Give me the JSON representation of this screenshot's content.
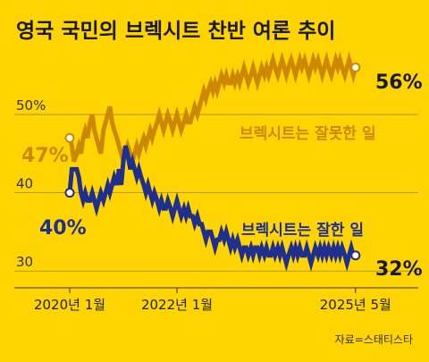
{
  "chart_data": {
    "type": "line",
    "title": "영국 국민의 브렉시트 찬반 여론 추이",
    "source": "자료=스태티스타",
    "y_ticks": [
      {
        "value": 50,
        "label": "50%"
      },
      {
        "value": 40,
        "label": "40"
      },
      {
        "value": 30,
        "label": "30"
      }
    ],
    "x_ticks": [
      {
        "value": 2020.0,
        "label": "2020년 1월"
      },
      {
        "value": 2022.0,
        "label": "2022년 1월"
      },
      {
        "value": 2025.33,
        "label": "2025년 5월"
      }
    ],
    "xlim": [
      2020.0,
      2025.5
    ],
    "ylim": [
      29,
      58
    ],
    "grid": "horizontal",
    "colors": {
      "background": "#FFD400",
      "grid": "#9a8a3a",
      "axis": "#333333"
    },
    "series": [
      {
        "name": "브렉시트는 잘못한 일",
        "color": "#CC8800",
        "start_label": "47%",
        "end_label": "56%",
        "x": [
          2020.0,
          2020.04,
          2020.08,
          2020.13,
          2020.17,
          2020.21,
          2020.25,
          2020.29,
          2020.33,
          2020.38,
          2020.42,
          2020.46,
          2020.5,
          2020.54,
          2020.58,
          2020.63,
          2020.67,
          2020.71,
          2020.75,
          2020.79,
          2020.83,
          2020.88,
          2020.92,
          2020.96,
          2021.0,
          2021.04,
          2021.08,
          2021.13,
          2021.17,
          2021.21,
          2021.25,
          2021.29,
          2021.33,
          2021.38,
          2021.42,
          2021.46,
          2021.5,
          2021.54,
          2021.58,
          2021.63,
          2021.67,
          2021.71,
          2021.75,
          2021.79,
          2021.83,
          2021.88,
          2021.92,
          2021.96,
          2022.0,
          2022.04,
          2022.08,
          2022.13,
          2022.17,
          2022.21,
          2022.25,
          2022.29,
          2022.33,
          2022.38,
          2022.42,
          2022.46,
          2022.5,
          2022.54,
          2022.58,
          2022.63,
          2022.67,
          2022.71,
          2022.75,
          2022.79,
          2022.83,
          2022.88,
          2022.92,
          2022.96,
          2023.0,
          2023.04,
          2023.08,
          2023.13,
          2023.17,
          2023.21,
          2023.25,
          2023.29,
          2023.33,
          2023.38,
          2023.42,
          2023.46,
          2023.5,
          2023.54,
          2023.58,
          2023.63,
          2023.67,
          2023.71,
          2023.75,
          2023.79,
          2023.83,
          2023.88,
          2023.92,
          2023.96,
          2024.0,
          2024.04,
          2024.08,
          2024.13,
          2024.17,
          2024.21,
          2024.25,
          2024.29,
          2024.33,
          2024.38,
          2024.42,
          2024.46,
          2024.5,
          2024.54,
          2024.58,
          2024.63,
          2024.67,
          2024.71,
          2024.75,
          2024.79,
          2024.83,
          2024.88,
          2024.92,
          2024.96,
          2025.0,
          2025.04,
          2025.08,
          2025.13,
          2025.17,
          2025.21,
          2025.25,
          2025.29,
          2025.33
        ],
        "values": [
          47,
          46,
          44,
          45,
          46,
          45,
          47,
          48,
          47,
          49,
          50,
          48,
          47,
          46,
          45,
          48,
          49,
          50,
          51,
          49,
          48,
          47,
          46,
          45,
          44,
          45,
          46,
          45,
          44,
          45,
          46,
          45,
          46,
          47,
          46,
          47,
          48,
          47,
          48,
          49,
          50,
          49,
          48,
          49,
          50,
          49,
          48,
          49,
          50,
          49,
          48,
          49,
          50,
          49,
          49,
          50,
          51,
          50,
          51,
          52,
          53,
          52,
          53,
          54,
          53,
          54,
          53,
          54,
          55,
          54,
          55,
          54,
          54,
          55,
          54,
          55,
          54,
          55,
          56,
          55,
          54,
          55,
          56,
          55,
          54,
          55,
          56,
          55,
          56,
          55,
          56,
          57,
          56,
          55,
          56,
          57,
          56,
          55,
          56,
          57,
          56,
          55,
          56,
          57,
          56,
          57,
          56,
          55,
          56,
          57,
          56,
          57,
          56,
          55,
          56,
          57,
          56,
          55,
          56,
          57,
          56,
          57,
          56,
          55,
          56,
          57,
          56,
          55,
          56
        ]
      },
      {
        "name": "브렉시트는 잘한 일",
        "color": "#1F2F8F",
        "start_label": "40%",
        "end_label": "32%",
        "x": [
          2020.0,
          2020.04,
          2020.08,
          2020.13,
          2020.17,
          2020.21,
          2020.25,
          2020.29,
          2020.33,
          2020.38,
          2020.42,
          2020.46,
          2020.5,
          2020.54,
          2020.58,
          2020.63,
          2020.67,
          2020.71,
          2020.75,
          2020.79,
          2020.83,
          2020.88,
          2020.92,
          2020.96,
          2021.0,
          2021.04,
          2021.08,
          2021.13,
          2021.17,
          2021.21,
          2021.25,
          2021.29,
          2021.33,
          2021.38,
          2021.42,
          2021.46,
          2021.5,
          2021.54,
          2021.58,
          2021.63,
          2021.67,
          2021.71,
          2021.75,
          2021.79,
          2021.83,
          2021.88,
          2021.92,
          2021.96,
          2022.0,
          2022.04,
          2022.08,
          2022.13,
          2022.17,
          2022.21,
          2022.25,
          2022.29,
          2022.33,
          2022.38,
          2022.42,
          2022.46,
          2022.5,
          2022.54,
          2022.58,
          2022.63,
          2022.67,
          2022.71,
          2022.75,
          2022.79,
          2022.83,
          2022.88,
          2022.92,
          2022.96,
          2023.0,
          2023.04,
          2023.08,
          2023.13,
          2023.17,
          2023.21,
          2023.25,
          2023.29,
          2023.33,
          2023.38,
          2023.42,
          2023.46,
          2023.5,
          2023.54,
          2023.58,
          2023.63,
          2023.67,
          2023.71,
          2023.75,
          2023.79,
          2023.83,
          2023.88,
          2023.92,
          2023.96,
          2024.0,
          2024.04,
          2024.08,
          2024.13,
          2024.17,
          2024.21,
          2024.25,
          2024.29,
          2024.33,
          2024.38,
          2024.42,
          2024.46,
          2024.5,
          2024.54,
          2024.58,
          2024.63,
          2024.67,
          2024.71,
          2024.75,
          2024.79,
          2024.83,
          2024.88,
          2024.92,
          2024.96,
          2025.0,
          2025.04,
          2025.08,
          2025.13,
          2025.17,
          2025.21,
          2025.25,
          2025.29,
          2025.33
        ],
        "values": [
          40,
          43,
          43,
          43,
          42,
          40,
          39,
          40,
          39,
          39,
          40,
          39,
          38,
          39,
          40,
          39,
          40,
          41,
          40,
          41,
          42,
          41,
          43,
          41,
          44,
          46,
          45,
          43,
          44,
          43,
          42,
          43,
          42,
          41,
          40,
          41,
          40,
          39,
          40,
          39,
          38,
          39,
          38,
          38,
          39,
          38,
          37,
          38,
          39,
          38,
          37,
          38,
          37,
          38,
          37,
          37,
          36,
          37,
          36,
          36,
          35,
          34,
          35,
          35,
          34,
          33,
          34,
          34,
          35,
          34,
          35,
          34,
          33,
          34,
          33,
          34,
          33,
          32,
          33,
          33,
          32,
          33,
          32,
          33,
          33,
          32,
          33,
          32,
          33,
          32,
          32,
          33,
          32,
          33,
          32,
          33,
          32,
          31,
          32,
          33,
          32,
          33,
          32,
          33,
          32,
          32,
          33,
          32,
          31,
          32,
          33,
          32,
          33,
          32,
          33,
          32,
          33,
          32,
          33,
          32,
          33,
          32,
          33,
          32,
          31,
          32,
          33,
          32,
          32
        ]
      }
    ]
  }
}
